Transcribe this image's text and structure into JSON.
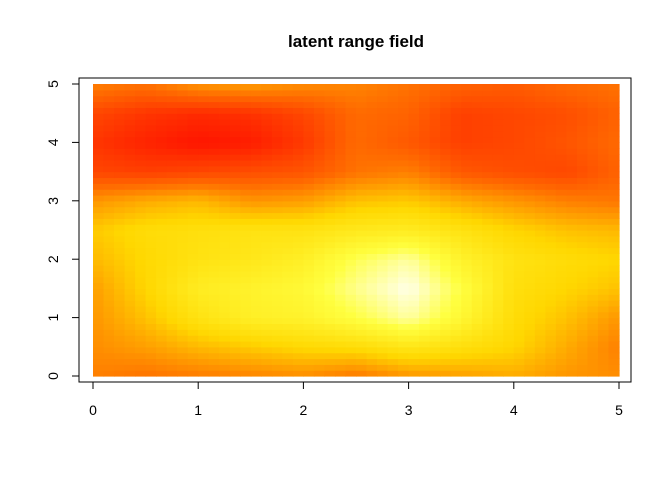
{
  "chart_data": {
    "type": "heatmap",
    "title": "latent range field",
    "xlabel": "",
    "ylabel": "",
    "xlim": [
      0,
      5
    ],
    "ylim": [
      0,
      5
    ],
    "x_ticks": [
      "0",
      "1",
      "2",
      "3",
      "4",
      "5"
    ],
    "y_ticks": [
      "0",
      "1",
      "2",
      "3",
      "4",
      "5"
    ],
    "color_scale": [
      "#ff0000",
      "#ff6a00",
      "#ffd700",
      "#ffff40",
      "#ffffff"
    ],
    "grid": false,
    "legend": "none",
    "z_note_values_relative": "0 = red (low), 1 = white (high)",
    "x": [
      0,
      0.5,
      1,
      1.5,
      2,
      2.5,
      3,
      3.5,
      4,
      4.5,
      5
    ],
    "y": [
      0,
      0.5,
      1,
      1.5,
      2,
      2.5,
      3,
      3.5,
      4,
      4.5,
      5
    ],
    "z": [
      [
        0.35,
        0.32,
        0.34,
        0.36,
        0.38,
        0.33,
        0.4,
        0.42,
        0.45,
        0.4,
        0.38
      ],
      [
        0.38,
        0.42,
        0.48,
        0.52,
        0.56,
        0.58,
        0.64,
        0.6,
        0.55,
        0.45,
        0.35
      ],
      [
        0.4,
        0.5,
        0.62,
        0.7,
        0.72,
        0.8,
        0.9,
        0.75,
        0.58,
        0.5,
        0.4
      ],
      [
        0.42,
        0.55,
        0.68,
        0.72,
        0.76,
        0.88,
        0.98,
        0.8,
        0.6,
        0.55,
        0.5
      ],
      [
        0.48,
        0.56,
        0.62,
        0.65,
        0.7,
        0.82,
        0.9,
        0.72,
        0.62,
        0.58,
        0.55
      ],
      [
        0.52,
        0.58,
        0.6,
        0.62,
        0.62,
        0.66,
        0.68,
        0.62,
        0.55,
        0.5,
        0.48
      ],
      [
        0.4,
        0.45,
        0.48,
        0.4,
        0.42,
        0.5,
        0.52,
        0.45,
        0.4,
        0.35,
        0.33
      ],
      [
        0.2,
        0.18,
        0.2,
        0.22,
        0.24,
        0.32,
        0.35,
        0.25,
        0.22,
        0.2,
        0.28
      ],
      [
        0.15,
        0.1,
        0.06,
        0.08,
        0.16,
        0.3,
        0.25,
        0.18,
        0.2,
        0.24,
        0.3
      ],
      [
        0.2,
        0.15,
        0.12,
        0.14,
        0.2,
        0.3,
        0.28,
        0.18,
        0.2,
        0.22,
        0.28
      ],
      [
        0.35,
        0.32,
        0.4,
        0.42,
        0.38,
        0.36,
        0.32,
        0.28,
        0.26,
        0.3,
        0.32
      ]
    ]
  }
}
